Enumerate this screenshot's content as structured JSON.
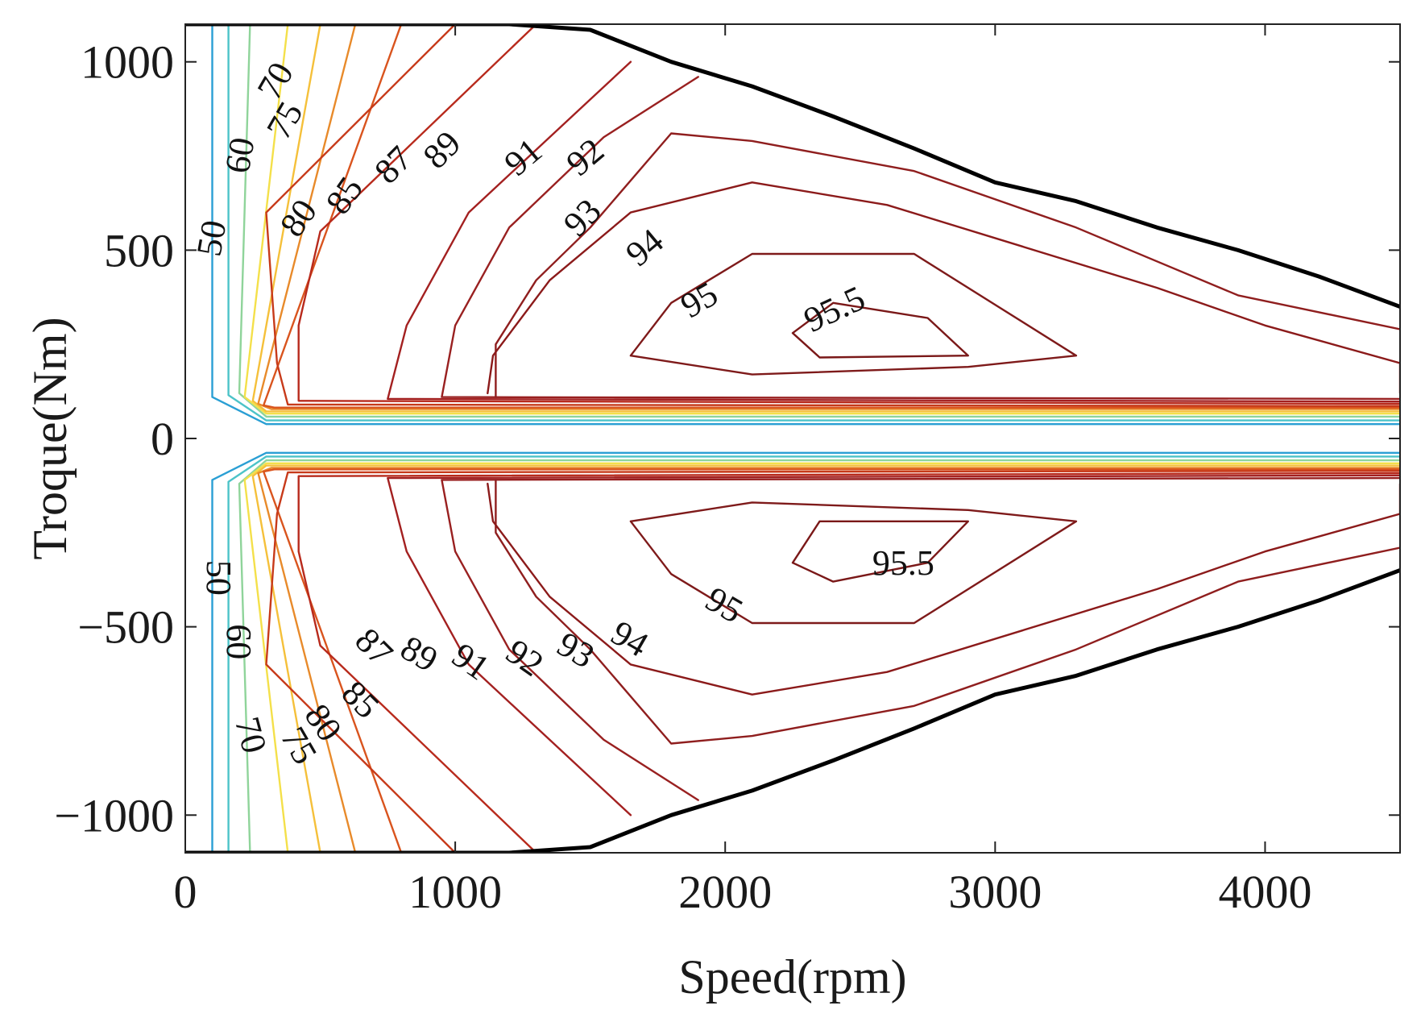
{
  "chart_data": {
    "type": "contour",
    "title": "",
    "xlabel": "Speed(rpm)",
    "ylabel": "Troque(Nm)",
    "xlim": [
      0,
      4500
    ],
    "ylim": [
      -1100,
      1100
    ],
    "x_ticks": [
      0,
      1000,
      2000,
      3000,
      4000
    ],
    "x_tick_labels": [
      "0",
      "1000",
      "2000",
      "3000",
      "4000"
    ],
    "y_ticks": [
      -1000,
      -500,
      0,
      500,
      1000
    ],
    "y_tick_labels": [
      "−1000",
      "−500",
      "0",
      "500",
      "1000"
    ],
    "grid": false,
    "torque_speed_boundary": {
      "color": "#000000",
      "points": [
        [
          0,
          1100
        ],
        [
          1200,
          1100
        ],
        [
          1500,
          1085
        ],
        [
          1800,
          1000
        ],
        [
          2100,
          935
        ],
        [
          2400,
          855
        ],
        [
          2700,
          770
        ],
        [
          3000,
          680
        ],
        [
          3300,
          630
        ],
        [
          3600,
          560
        ],
        [
          3900,
          500
        ],
        [
          4200,
          430
        ],
        [
          4500,
          350
        ]
      ]
    },
    "contour_levels": [
      {
        "level": 50,
        "label": "50",
        "color": "#2a9fd4",
        "upper": [
          [
            100,
            1100
          ],
          [
            100,
            110
          ],
          [
            300,
            38
          ],
          [
            4500,
            38
          ]
        ],
        "lower": [
          [
            100,
            -1100
          ],
          [
            100,
            -110
          ],
          [
            300,
            -38
          ],
          [
            4500,
            -38
          ]
        ]
      },
      {
        "level": 60,
        "label": "60",
        "color": "#4cc3c8",
        "upper": [
          [
            160,
            1100
          ],
          [
            160,
            115
          ],
          [
            300,
            48
          ],
          [
            4500,
            48
          ]
        ],
        "lower": [
          [
            160,
            -1100
          ],
          [
            160,
            -115
          ],
          [
            300,
            -48
          ],
          [
            4500,
            -48
          ]
        ]
      },
      {
        "level": 70,
        "label": "70",
        "color": "#8fd49a",
        "upper": [
          [
            240,
            1100
          ],
          [
            200,
            120
          ],
          [
            300,
            58
          ],
          [
            4500,
            58
          ]
        ],
        "lower": [
          [
            240,
            -1100
          ],
          [
            200,
            -120
          ],
          [
            300,
            -58
          ],
          [
            4500,
            -58
          ]
        ]
      },
      {
        "level": 75,
        "label": "75",
        "color": "#f4e04a",
        "upper": [
          [
            380,
            1100
          ],
          [
            220,
            110
          ],
          [
            300,
            66
          ],
          [
            4500,
            66
          ]
        ],
        "lower": [
          [
            380,
            -1100
          ],
          [
            220,
            -110
          ],
          [
            300,
            -66
          ],
          [
            4500,
            -66
          ]
        ]
      },
      {
        "level": 80,
        "label": "80",
        "color": "#f5c03a",
        "upper": [
          [
            500,
            1100
          ],
          [
            250,
            100
          ],
          [
            300,
            72
          ],
          [
            4500,
            72
          ]
        ],
        "lower": [
          [
            500,
            -1100
          ],
          [
            250,
            -100
          ],
          [
            300,
            -72
          ],
          [
            4500,
            -72
          ]
        ]
      },
      {
        "level": 85,
        "label": "85",
        "color": "#e88a2a",
        "upper": [
          [
            630,
            1100
          ],
          [
            270,
            92
          ],
          [
            320,
            78
          ],
          [
            4500,
            78
          ]
        ],
        "lower": [
          [
            630,
            -1100
          ],
          [
            270,
            -92
          ],
          [
            320,
            -78
          ],
          [
            4500,
            -78
          ]
        ]
      },
      {
        "level": 87,
        "label": "87",
        "color": "#d9541e",
        "upper": [
          [
            800,
            1100
          ],
          [
            290,
            88
          ],
          [
            330,
            82
          ],
          [
            4500,
            82
          ]
        ],
        "lower": [
          [
            800,
            -1100
          ],
          [
            290,
            -88
          ],
          [
            330,
            -82
          ],
          [
            4500,
            -82
          ]
        ]
      },
      {
        "level": 89,
        "label": "89",
        "color": "#c73a1a",
        "upper": [
          [
            1000,
            1100
          ],
          [
            300,
            600
          ],
          [
            340,
            200
          ],
          [
            380,
            90
          ],
          [
            4500,
            86
          ]
        ],
        "lower": [
          [
            1000,
            -1100
          ],
          [
            300,
            -600
          ],
          [
            340,
            -200
          ],
          [
            380,
            -90
          ],
          [
            4500,
            -86
          ]
        ]
      },
      {
        "level": 91,
        "label": "91",
        "color": "#b82a1c",
        "upper": [
          [
            1300,
            1100
          ],
          [
            500,
            550
          ],
          [
            420,
            300
          ],
          [
            420,
            100
          ],
          [
            4500,
            92
          ]
        ],
        "lower": [
          [
            1300,
            -1100
          ],
          [
            500,
            -550
          ],
          [
            420,
            -300
          ],
          [
            420,
            -100
          ],
          [
            4500,
            -92
          ]
        ]
      },
      {
        "level": 92,
        "label": "92",
        "color": "#a32020",
        "upper": [
          [
            1650,
            1000
          ],
          [
            1050,
            600
          ],
          [
            820,
            300
          ],
          [
            750,
            105
          ],
          [
            4500,
            98
          ]
        ],
        "lower": [
          [
            1650,
            -1000
          ],
          [
            1050,
            -600
          ],
          [
            820,
            -300
          ],
          [
            750,
            -105
          ],
          [
            4500,
            -98
          ]
        ]
      },
      {
        "level": 93,
        "label": "93",
        "color": "#992020",
        "upper": [
          [
            1900,
            960
          ],
          [
            1550,
            800
          ],
          [
            1200,
            560
          ],
          [
            1000,
            300
          ],
          [
            950,
            110
          ],
          [
            4500,
            105
          ]
        ],
        "lower": [
          [
            1900,
            -960
          ],
          [
            1550,
            -800
          ],
          [
            1200,
            -560
          ],
          [
            1000,
            -300
          ],
          [
            950,
            -110
          ],
          [
            4500,
            -105
          ]
        ]
      },
      {
        "level": 94,
        "label": "94",
        "color": "#8f1e1e",
        "upper": [
          [
            1150,
            110
          ],
          [
            1150,
            250
          ],
          [
            1300,
            420
          ],
          [
            1500,
            560
          ],
          [
            1800,
            810
          ],
          [
            2100,
            790
          ],
          [
            2700,
            710
          ],
          [
            3300,
            560
          ],
          [
            3900,
            380
          ],
          [
            4500,
            290
          ]
        ],
        "lower": [
          [
            1150,
            -110
          ],
          [
            1150,
            -250
          ],
          [
            1300,
            -420
          ],
          [
            1500,
            -560
          ],
          [
            1800,
            -810
          ],
          [
            2100,
            -790
          ],
          [
            2700,
            -710
          ],
          [
            3300,
            -560
          ],
          [
            3900,
            -380
          ],
          [
            4500,
            -290
          ]
        ]
      },
      {
        "level": 95,
        "label": "95",
        "color": "#8b1a1a",
        "closed": true,
        "upper": [
          [
            1120,
            120
          ],
          [
            1140,
            220
          ],
          [
            1350,
            420
          ],
          [
            1650,
            600
          ],
          [
            2100,
            680
          ],
          [
            2600,
            620
          ],
          [
            3100,
            510
          ],
          [
            3600,
            400
          ],
          [
            4000,
            300
          ],
          [
            4500,
            200
          ],
          [
            4500,
            120
          ]
        ],
        "lower": [
          [
            1120,
            -120
          ],
          [
            1140,
            -220
          ],
          [
            1350,
            -420
          ],
          [
            1650,
            -600
          ],
          [
            2100,
            -680
          ],
          [
            2600,
            -620
          ],
          [
            3100,
            -510
          ],
          [
            3600,
            -400
          ],
          [
            4000,
            -300
          ],
          [
            4500,
            -200
          ],
          [
            4500,
            -120
          ]
        ]
      },
      {
        "level": 95,
        "label": "95",
        "color": "#7e1a1a",
        "closed": true,
        "upper": [
          [
            1650,
            220
          ],
          [
            1800,
            360
          ],
          [
            2100,
            490
          ],
          [
            2700,
            490
          ],
          [
            3300,
            220
          ],
          [
            2900,
            190
          ],
          [
            2100,
            170
          ],
          [
            1650,
            220
          ]
        ],
        "lower": [
          [
            1650,
            -220
          ],
          [
            1800,
            -360
          ],
          [
            2100,
            -490
          ],
          [
            2700,
            -490
          ],
          [
            3300,
            -220
          ],
          [
            2900,
            -190
          ],
          [
            2100,
            -170
          ],
          [
            1650,
            -220
          ]
        ]
      },
      {
        "level": 95.5,
        "label": "95.5",
        "color": "#7a1818",
        "closed": true,
        "upper": [
          [
            2250,
            280
          ],
          [
            2400,
            360
          ],
          [
            2750,
            320
          ],
          [
            2900,
            220
          ],
          [
            2350,
            215
          ],
          [
            2250,
            280
          ]
        ],
        "lower": [
          [
            2250,
            -330
          ],
          [
            2350,
            -220
          ],
          [
            2900,
            -220
          ],
          [
            2750,
            -330
          ],
          [
            2400,
            -380
          ],
          [
            2250,
            -330
          ]
        ]
      }
    ],
    "annotations_upper": [
      {
        "text": "50",
        "x": 110,
        "y": 530,
        "angle": -80
      },
      {
        "text": "60",
        "x": 215,
        "y": 750,
        "angle": -80
      },
      {
        "text": "70",
        "x": 345,
        "y": 945,
        "angle": -60
      },
      {
        "text": "75",
        "x": 380,
        "y": 840,
        "angle": -60
      },
      {
        "text": "80",
        "x": 430,
        "y": 580,
        "angle": -55
      },
      {
        "text": "85",
        "x": 600,
        "y": 640,
        "angle": -55
      },
      {
        "text": "87",
        "x": 780,
        "y": 720,
        "angle": -45
      },
      {
        "text": "89",
        "x": 960,
        "y": 760,
        "angle": -45
      },
      {
        "text": "91",
        "x": 1260,
        "y": 740,
        "angle": -40
      },
      {
        "text": "92",
        "x": 1490,
        "y": 740,
        "angle": -40
      },
      {
        "text": "93",
        "x": 1480,
        "y": 580,
        "angle": -45
      },
      {
        "text": "94",
        "x": 1710,
        "y": 500,
        "angle": -40
      },
      {
        "text": "95",
        "x": 1910,
        "y": 360,
        "angle": -30
      },
      {
        "text": "95.5",
        "x": 2410,
        "y": 335,
        "angle": -25
      }
    ],
    "annotations_lower": [
      {
        "text": "50",
        "x": 110,
        "y": -370,
        "angle": 90
      },
      {
        "text": "60",
        "x": 185,
        "y": -540,
        "angle": 90
      },
      {
        "text": "70",
        "x": 230,
        "y": -790,
        "angle": 75
      },
      {
        "text": "75",
        "x": 410,
        "y": -820,
        "angle": 60
      },
      {
        "text": "80",
        "x": 500,
        "y": -760,
        "angle": 55
      },
      {
        "text": "85",
        "x": 640,
        "y": -700,
        "angle": 45
      },
      {
        "text": "87",
        "x": 690,
        "y": -560,
        "angle": 45
      },
      {
        "text": "89",
        "x": 860,
        "y": -580,
        "angle": 30
      },
      {
        "text": "91",
        "x": 1050,
        "y": -600,
        "angle": 35
      },
      {
        "text": "92",
        "x": 1250,
        "y": -590,
        "angle": 35
      },
      {
        "text": "93",
        "x": 1440,
        "y": -570,
        "angle": 30
      },
      {
        "text": "94",
        "x": 1640,
        "y": -540,
        "angle": 30
      },
      {
        "text": "95",
        "x": 1990,
        "y": -450,
        "angle": 30
      },
      {
        "text": "95.5",
        "x": 2660,
        "y": -340,
        "angle": 0
      }
    ]
  }
}
